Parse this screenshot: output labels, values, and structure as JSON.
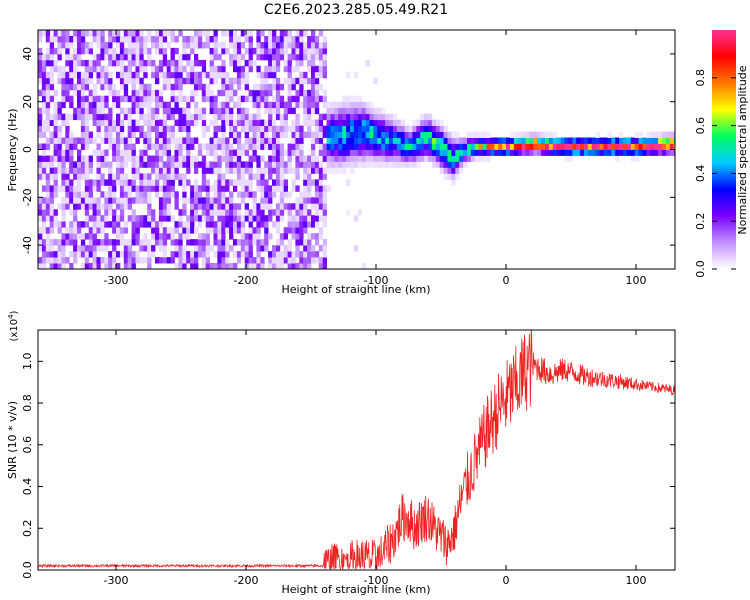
{
  "title": "C2E6.2023.285.05.49.R21",
  "colors": {
    "snr_line": "#ee2222",
    "axis": "#000000"
  },
  "chart_data": [
    {
      "type": "heatmap",
      "title": "C2E6.2023.285.05.49.R21",
      "xlabel": "Height of straight line (km)",
      "ylabel": "Frequency (Hz)",
      "xlim": [
        -360,
        130
      ],
      "ylim": [
        -50,
        50
      ],
      "x_ticks": [
        -300,
        -200,
        -100,
        0,
        100
      ],
      "y_ticks": [
        40,
        20,
        0,
        -20,
        -40
      ],
      "colorbar": {
        "label": "Normalized spectral amplitude",
        "range": [
          0.0,
          1.0
        ],
        "ticks": [
          "0.0",
          "0.2",
          "0.4",
          "0.6",
          "0.8"
        ],
        "colormap": [
          "#ffffff",
          "#c090ff",
          "#7a00ff",
          "#0000ff",
          "#00ccff",
          "#00ff60",
          "#ffff00",
          "#ff7700",
          "#ff0000",
          "#ff3399"
        ]
      },
      "features": {
        "noise_region_x": [
          -360,
          -140
        ],
        "noise_level": 0.15,
        "ridge": [
          {
            "x": -140,
            "y": 4,
            "width": 8,
            "amp": 0.4
          },
          {
            "x": -125,
            "y": 5,
            "width": 9,
            "amp": 0.45
          },
          {
            "x": -110,
            "y": 6,
            "width": 8,
            "amp": 0.45
          },
          {
            "x": -100,
            "y": 4,
            "width": 7,
            "amp": 0.45
          },
          {
            "x": -85,
            "y": 2,
            "width": 6,
            "amp": 0.4
          },
          {
            "x": -75,
            "y": 0,
            "width": 5,
            "amp": 0.45
          },
          {
            "x": -62,
            "y": 4,
            "width": 6,
            "amp": 0.5
          },
          {
            "x": -50,
            "y": -1,
            "width": 6,
            "amp": 0.5
          },
          {
            "x": -42,
            "y": -5,
            "width": 6,
            "amp": 0.45
          },
          {
            "x": -35,
            "y": -2,
            "width": 4,
            "amp": 0.45
          },
          {
            "x": -25,
            "y": 0,
            "width": 3,
            "amp": 0.55
          },
          {
            "x": -10,
            "y": 0,
            "width": 2.5,
            "amp": 0.85
          },
          {
            "x": 0,
            "y": 0,
            "width": 2.5,
            "amp": 0.9
          },
          {
            "x": 20,
            "y": 1,
            "width": 2.5,
            "amp": 0.9
          },
          {
            "x": 40,
            "y": 0,
            "width": 2.5,
            "amp": 0.95
          },
          {
            "x": 80,
            "y": 0,
            "width": 2.5,
            "amp": 0.95
          },
          {
            "x": 100,
            "y": 0,
            "width": 2.5,
            "amp": 0.95
          },
          {
            "x": 130,
            "y": 1,
            "width": 2.5,
            "amp": 0.95
          }
        ]
      }
    },
    {
      "type": "line",
      "xlabel": "Height of straight line (km)",
      "ylabel": "SNR (10 * v/v)",
      "y_multiplier": "(x10",
      "y_multiplier_exp": "4",
      "y_multiplier_close": ")",
      "xlim": [
        -360,
        130
      ],
      "ylim": [
        0,
        1.15
      ],
      "x_ticks": [
        -300,
        -200,
        -100,
        0,
        100
      ],
      "y_ticks": [
        "0.0",
        "0.2",
        "0.4",
        "0.6",
        "0.8",
        "1.0"
      ],
      "series": [
        {
          "color": "#ee2222",
          "x": [
            -360,
            -300,
            -200,
            -140,
            -130,
            -120,
            -110,
            -100,
            -90,
            -85,
            -80,
            -75,
            -70,
            -65,
            -60,
            -55,
            -50,
            -45,
            -40,
            -35,
            -30,
            -25,
            -20,
            -15,
            -10,
            -5,
            0,
            5,
            10,
            15,
            20,
            25,
            30,
            35,
            40,
            45,
            50,
            55,
            60,
            70,
            80,
            90,
            100,
            110,
            120,
            130
          ],
          "values": [
            0.02,
            0.02,
            0.02,
            0.02,
            0.04,
            0.05,
            0.06,
            0.05,
            0.12,
            0.17,
            0.25,
            0.25,
            0.2,
            0.24,
            0.26,
            0.2,
            0.16,
            0.12,
            0.18,
            0.32,
            0.42,
            0.5,
            0.58,
            0.66,
            0.72,
            0.78,
            0.82,
            0.86,
            0.9,
            0.96,
            0.98,
            0.97,
            0.95,
            0.94,
            0.95,
            0.96,
            0.95,
            0.94,
            0.93,
            0.92,
            0.91,
            0.9,
            0.89,
            0.88,
            0.87,
            0.86
          ]
        }
      ]
    }
  ]
}
